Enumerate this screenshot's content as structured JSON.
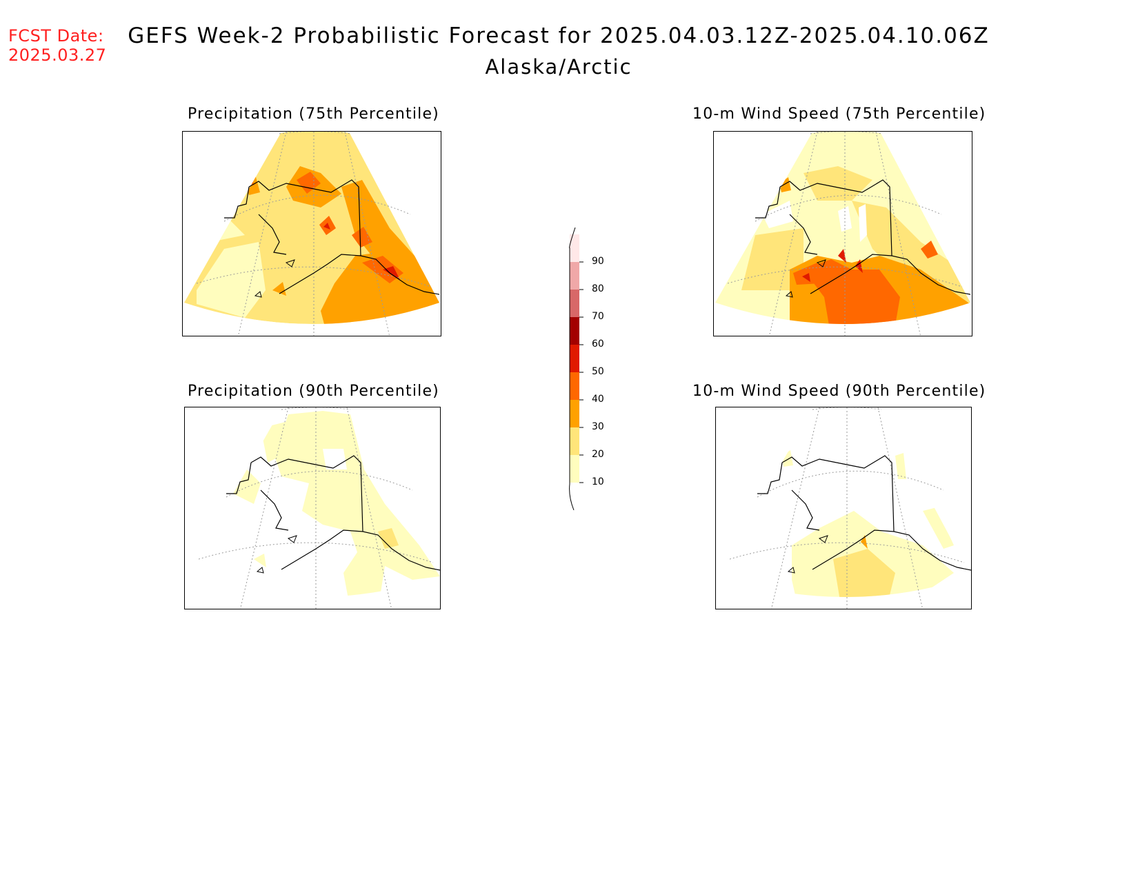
{
  "header": {
    "fcst_label": "FCST Date:",
    "fcst_date": "2025.03.27",
    "title": "GEFS Week-2 Probabilistic Forecast for 2025.04.03.12Z-2025.04.10.06Z",
    "subtitle": "Alaska/Arctic"
  },
  "panels": [
    {
      "title": "Precipitation (75th Percentile)"
    },
    {
      "title": "10-m Wind Speed (75th Percentile)"
    },
    {
      "title": "Precipitation (90th Percentile)"
    },
    {
      "title": "10-m Wind Speed (90th Percentile)"
    }
  ],
  "colorbar": {
    "levels": [
      "10",
      "20",
      "30",
      "40",
      "50",
      "60",
      "70",
      "80",
      "90"
    ],
    "colors": [
      "#fffdbe",
      "#ffe57a",
      "#ffa100",
      "#ff6800",
      "#e01a00",
      "#a30000",
      "#d86868",
      "#f0a8a8",
      "#ffe8e8"
    ]
  },
  "colors": {
    "fcst_text": "#ff2020",
    "land_outline": "#000000",
    "grid": "#9a9a9a"
  }
}
